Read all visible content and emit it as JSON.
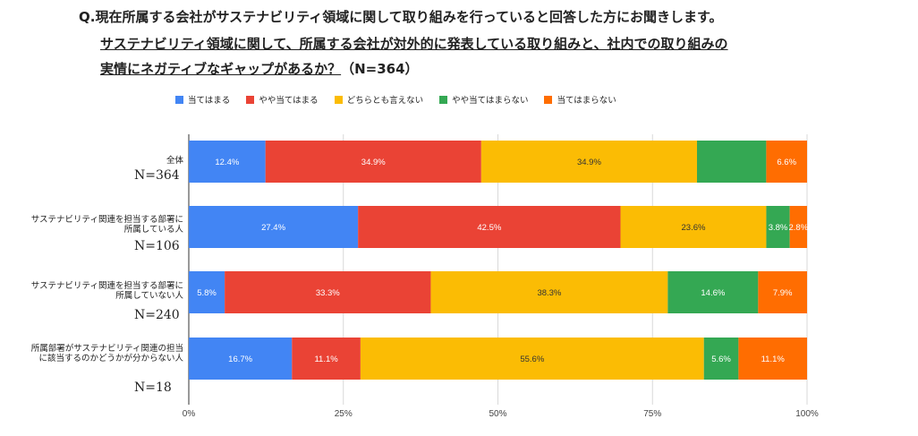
{
  "question": {
    "line1": "Q.現在所属する会社がサステナビリティ領域に関して取り組みを行っていると回答した方にお聞きします。",
    "line2": "サステナビリティ領域に関して、所属する会社が対外的に発表している取り組みと、社内での取り組みの",
    "line3a": "実情にネガティブなギャップがあるか？",
    "line3b": "（N=364）"
  },
  "chart_data": {
    "type": "bar",
    "orientation": "horizontal",
    "stacked": true,
    "normalized": true,
    "legend_position": "top",
    "grid": true,
    "categories": [
      {
        "label": "全体",
        "n": "N=364"
      },
      {
        "label": "サステナビリティ関連を担当する部署に所属している人",
        "n": "N=106"
      },
      {
        "label": "サステナビリティ関連を担当する部署に所属していない人",
        "n": "N=240"
      },
      {
        "label": "所属部署がサステナビリティ関連の担当に該当するのかどうかが分からない人",
        "n": "N=18"
      }
    ],
    "series": [
      {
        "name": "当てはまる",
        "color": "#4285f4",
        "values": [
          12.4,
          27.4,
          5.8,
          16.7
        ]
      },
      {
        "name": "やや当てはまる",
        "color": "#ea4335",
        "values": [
          34.9,
          42.5,
          33.3,
          11.1
        ]
      },
      {
        "name": "どちらとも言えない",
        "color": "#fbbc04",
        "values": [
          34.9,
          23.6,
          38.3,
          55.6
        ]
      },
      {
        "name": "やや当てはまらない",
        "color": "#34a853",
        "values": [
          11.2,
          3.8,
          14.6,
          5.6
        ]
      },
      {
        "name": "当てはまらない",
        "color": "#ff6d01",
        "values": [
          6.6,
          2.8,
          7.9,
          11.1
        ]
      }
    ],
    "data_labels": [
      [
        "12.4%",
        "34.9%",
        "34.9%",
        "",
        "6.6%"
      ],
      [
        "27.4%",
        "42.5%",
        "23.6%",
        "3.8%",
        "2.8%"
      ],
      [
        "5.8%",
        "33.3%",
        "38.3%",
        "14.6%",
        "7.9%"
      ],
      [
        "16.7%",
        "11.1%",
        "55.6%",
        "5.6%",
        "11.1%"
      ]
    ],
    "x_ticks": [
      "0%",
      "25%",
      "50%",
      "75%",
      "100%"
    ],
    "xlim": [
      0,
      100
    ]
  }
}
